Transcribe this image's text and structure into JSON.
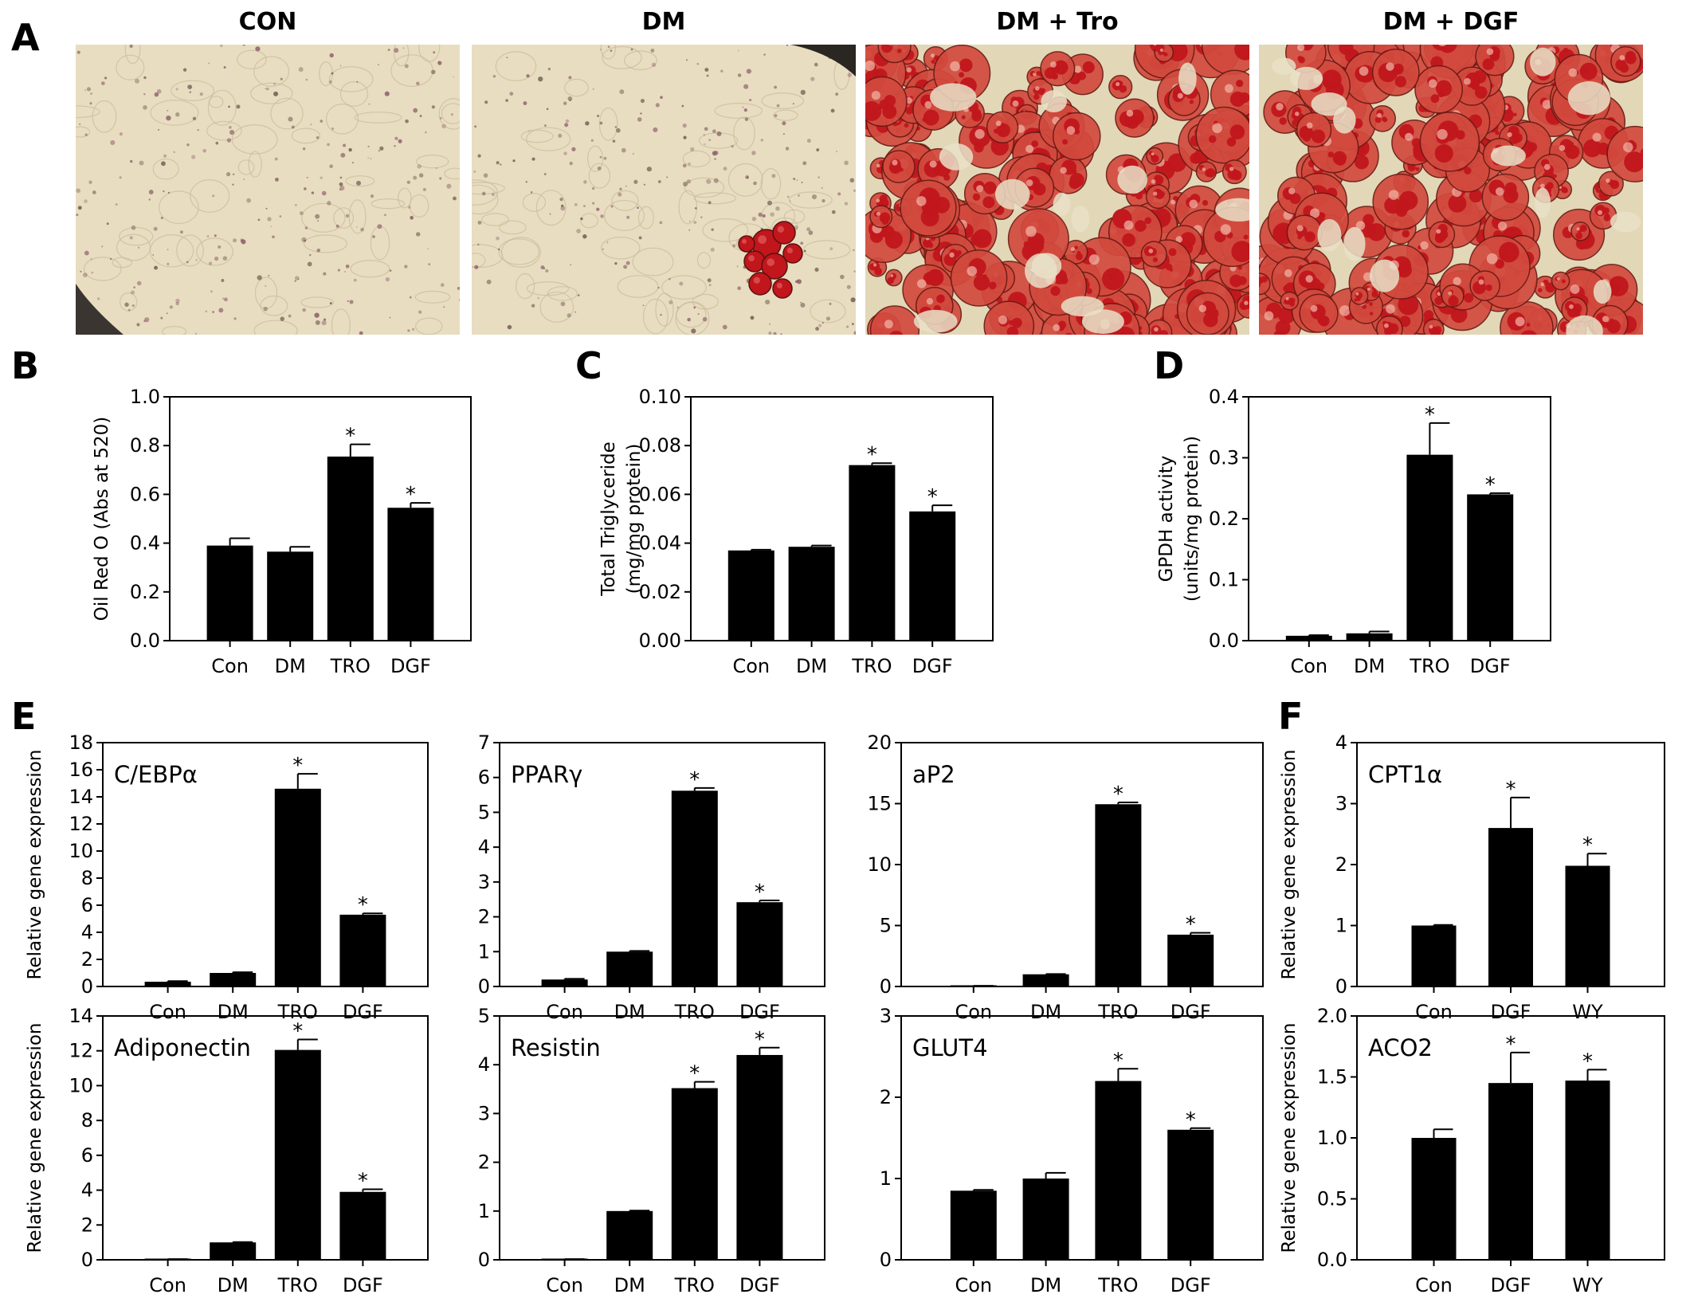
{
  "panel_letters": {
    "A": "A",
    "B": "B",
    "C": "C",
    "D": "D",
    "E": "E",
    "F": "F"
  },
  "micrographs": [
    {
      "title": "CON",
      "description": "pale cells, no lipid",
      "stain_density": "very low"
    },
    {
      "title": "DM",
      "description": "pale cells, one small red cluster",
      "stain_density": "low"
    },
    {
      "title": "DM + Tro",
      "description": "dense red lipid droplets",
      "stain_density": "high"
    },
    {
      "title": "DM + DGF",
      "description": "dense red lipid droplets",
      "stain_density": "high"
    }
  ],
  "colors": {
    "bar": "#000000",
    "micrograph_background": "#e8ddc0",
    "lipid_red": "#c0161c",
    "speck": "#8c5a6a"
  },
  "chart_data": [
    {
      "id": "B",
      "type": "bar",
      "categories": [
        "Con",
        "DM",
        "TRO",
        "DGF"
      ],
      "values": [
        0.39,
        0.365,
        0.755,
        0.545
      ],
      "errors": [
        0.03,
        0.02,
        0.05,
        0.02
      ],
      "significant": [
        false,
        false,
        true,
        true
      ],
      "sig_marker": "*",
      "ylim": [
        0,
        1.0
      ],
      "yticks": [
        "0.0",
        "0.2",
        "0.4",
        "0.6",
        "0.8",
        "1.0"
      ],
      "ylabel": [
        "Oil Red O (Abs at 520)"
      ],
      "label": ""
    },
    {
      "id": "C",
      "type": "bar",
      "categories": [
        "Con",
        "DM",
        "TRO",
        "DGF"
      ],
      "values": [
        0.037,
        0.0385,
        0.072,
        0.053
      ],
      "errors": [
        0.0003,
        0.0005,
        0.0008,
        0.0025
      ],
      "significant": [
        false,
        false,
        true,
        true
      ],
      "sig_marker": "*",
      "ylim": [
        0,
        0.1
      ],
      "yticks": [
        "0.00",
        "0.02",
        "0.04",
        "0.06",
        "0.08",
        "0.10"
      ],
      "ylabel": [
        "Total Triglyceride",
        "(mg/mg protein)"
      ],
      "label": ""
    },
    {
      "id": "D",
      "type": "bar",
      "categories": [
        "Con",
        "DM",
        "TRO",
        "DGF"
      ],
      "values": [
        0.008,
        0.012,
        0.305,
        0.24
      ],
      "errors": [
        0.001,
        0.003,
        0.052,
        0.002
      ],
      "significant": [
        false,
        false,
        true,
        true
      ],
      "sig_marker": "*",
      "ylim": [
        0,
        0.4
      ],
      "yticks": [
        "0.0",
        "0.1",
        "0.2",
        "0.3",
        "0.4"
      ],
      "ylabel": [
        "GPDH activity",
        "(units/mg protein)"
      ],
      "label": ""
    },
    {
      "id": "E1",
      "type": "bar",
      "categories": [
        "Con",
        "DM",
        "TRO",
        "DGF"
      ],
      "values": [
        0.35,
        1.0,
        14.6,
        5.3
      ],
      "errors": [
        0.05,
        0.05,
        1.1,
        0.1
      ],
      "significant": [
        false,
        false,
        true,
        true
      ],
      "sig_marker": "*",
      "ylim": [
        0,
        18
      ],
      "yticks": [
        "0",
        "2",
        "4",
        "6",
        "8",
        "10",
        "12",
        "14",
        "16",
        "18"
      ],
      "ylabel": [
        "Relative gene expression"
      ],
      "label": "C/EBPα"
    },
    {
      "id": "E2",
      "type": "bar",
      "categories": [
        "Con",
        "DM",
        "TRO",
        "DGF"
      ],
      "values": [
        0.2,
        1.0,
        5.62,
        2.42
      ],
      "errors": [
        0.02,
        0.02,
        0.08,
        0.05
      ],
      "significant": [
        false,
        false,
        true,
        true
      ],
      "sig_marker": "*",
      "ylim": [
        0,
        7
      ],
      "yticks": [
        "0",
        "1",
        "2",
        "3",
        "4",
        "5",
        "6",
        "7"
      ],
      "ylabel": [],
      "label": "PPARγ"
    },
    {
      "id": "E3",
      "type": "bar",
      "categories": [
        "Con",
        "DM",
        "TRO",
        "DGF"
      ],
      "values": [
        0.05,
        1.0,
        14.95,
        4.25
      ],
      "errors": [
        0.01,
        0.02,
        0.15,
        0.15
      ],
      "significant": [
        false,
        false,
        true,
        true
      ],
      "sig_marker": "*",
      "ylim": [
        0,
        20
      ],
      "yticks": [
        "0",
        "5",
        "10",
        "15",
        "20"
      ],
      "ylabel": [],
      "label": "aP2"
    },
    {
      "id": "E4",
      "type": "bar",
      "categories": [
        "Con",
        "DM",
        "TRO",
        "DGF"
      ],
      "values": [
        0.03,
        1.0,
        12.05,
        3.9
      ],
      "errors": [
        0.01,
        0.02,
        0.6,
        0.15
      ],
      "significant": [
        false,
        false,
        true,
        true
      ],
      "sig_marker": "*",
      "ylim": [
        0,
        14
      ],
      "yticks": [
        "0",
        "2",
        "4",
        "6",
        "8",
        "10",
        "12",
        "14"
      ],
      "ylabel": [
        "Relative gene expression"
      ],
      "label": "Adiponectin"
    },
    {
      "id": "E5",
      "type": "bar",
      "categories": [
        "Con",
        "DM",
        "TRO",
        "DGF"
      ],
      "values": [
        0.01,
        1.0,
        3.52,
        4.2
      ],
      "errors": [
        0.005,
        0.01,
        0.13,
        0.15
      ],
      "significant": [
        false,
        false,
        true,
        true
      ],
      "sig_marker": "*",
      "ylim": [
        0,
        5
      ],
      "yticks": [
        "0",
        "1",
        "2",
        "3",
        "4",
        "5"
      ],
      "ylabel": [],
      "label": "Resistin"
    },
    {
      "id": "E6",
      "type": "bar",
      "categories": [
        "Con",
        "DM",
        "TRO",
        "DGF"
      ],
      "values": [
        0.85,
        1.0,
        2.2,
        1.6
      ],
      "errors": [
        0.01,
        0.07,
        0.15,
        0.02
      ],
      "significant": [
        false,
        false,
        true,
        true
      ],
      "sig_marker": "*",
      "ylim": [
        0,
        3
      ],
      "yticks": [
        "0",
        "1",
        "2",
        "3"
      ],
      "ylabel": [],
      "label": "GLUT4"
    },
    {
      "id": "F1",
      "type": "bar",
      "categories": [
        "Con",
        "DGF",
        "WY"
      ],
      "values": [
        1.0,
        2.6,
        1.98
      ],
      "errors": [
        0.01,
        0.5,
        0.2
      ],
      "significant": [
        false,
        true,
        true
      ],
      "sig_marker": "*",
      "ylim": [
        0,
        4
      ],
      "yticks": [
        "0",
        "1",
        "2",
        "3",
        "4"
      ],
      "ylabel": [
        "Relative gene expression"
      ],
      "label": "CPT1α"
    },
    {
      "id": "F2",
      "type": "bar",
      "categories": [
        "Con",
        "DGF",
        "WY"
      ],
      "values": [
        1.0,
        1.45,
        1.47
      ],
      "errors": [
        0.07,
        0.25,
        0.09
      ],
      "significant": [
        false,
        true,
        true
      ],
      "sig_marker": "*",
      "ylim": [
        0,
        2.0
      ],
      "yticks": [
        "0.0",
        "0.5",
        "1.0",
        "1.5",
        "2.0"
      ],
      "ylabel": [
        "Relative gene expression"
      ],
      "label": "ACO2"
    }
  ]
}
